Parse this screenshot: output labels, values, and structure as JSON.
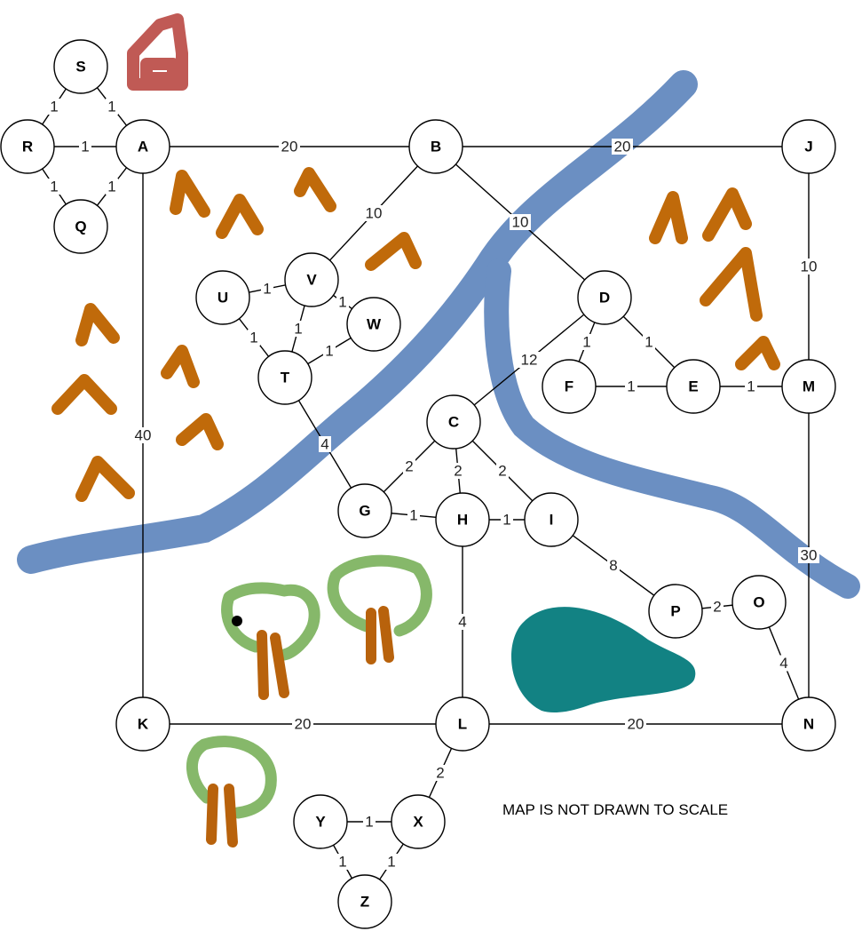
{
  "note": "MAP IS NOT DRAWN TO SCALE",
  "colors": {
    "river": "#6b8fc2",
    "mountain": "#c06a0a",
    "house": "#c05a55",
    "tree_crown": "#86b86a",
    "tree_trunk": "#b8620c",
    "lake": "#128283"
  },
  "nodes": [
    "S",
    "R",
    "A",
    "Q",
    "B",
    "J",
    "U",
    "V",
    "W",
    "T",
    "D",
    "F",
    "E",
    "M",
    "C",
    "G",
    "H",
    "I",
    "P",
    "O",
    "K",
    "L",
    "N",
    "X",
    "Y",
    "Z"
  ],
  "edges": [
    {
      "from": "S",
      "to": "R",
      "weight": "1"
    },
    {
      "from": "S",
      "to": "A",
      "weight": "1"
    },
    {
      "from": "R",
      "to": "A",
      "weight": "1"
    },
    {
      "from": "R",
      "to": "Q",
      "weight": "1"
    },
    {
      "from": "Q",
      "to": "A",
      "weight": "1"
    },
    {
      "from": "A",
      "to": "B",
      "weight": "20"
    },
    {
      "from": "B",
      "to": "J",
      "weight": "20"
    },
    {
      "from": "A",
      "to": "K",
      "weight": "40"
    },
    {
      "from": "B",
      "to": "V",
      "weight": "10"
    },
    {
      "from": "B",
      "to": "D",
      "weight": "10"
    },
    {
      "from": "J",
      "to": "M",
      "weight": "10"
    },
    {
      "from": "U",
      "to": "V",
      "weight": "1"
    },
    {
      "from": "V",
      "to": "W",
      "weight": "1"
    },
    {
      "from": "U",
      "to": "T",
      "weight": "1"
    },
    {
      "from": "V",
      "to": "T",
      "weight": "1"
    },
    {
      "from": "W",
      "to": "T",
      "weight": "1"
    },
    {
      "from": "T",
      "to": "G",
      "weight": "4"
    },
    {
      "from": "D",
      "to": "C",
      "weight": "12"
    },
    {
      "from": "D",
      "to": "F",
      "weight": "1"
    },
    {
      "from": "D",
      "to": "E",
      "weight": "1"
    },
    {
      "from": "F",
      "to": "E",
      "weight": "1"
    },
    {
      "from": "E",
      "to": "M",
      "weight": "1"
    },
    {
      "from": "M",
      "to": "N",
      "weight": "30"
    },
    {
      "from": "C",
      "to": "G",
      "weight": "2"
    },
    {
      "from": "C",
      "to": "H",
      "weight": "2"
    },
    {
      "from": "C",
      "to": "I",
      "weight": "2"
    },
    {
      "from": "G",
      "to": "H",
      "weight": "1"
    },
    {
      "from": "H",
      "to": "I",
      "weight": "1"
    },
    {
      "from": "I",
      "to": "P",
      "weight": "8"
    },
    {
      "from": "P",
      "to": "O",
      "weight": "2"
    },
    {
      "from": "O",
      "to": "N",
      "weight": "4"
    },
    {
      "from": "H",
      "to": "L",
      "weight": "4"
    },
    {
      "from": "K",
      "to": "L",
      "weight": "20"
    },
    {
      "from": "L",
      "to": "N",
      "weight": "20"
    },
    {
      "from": "L",
      "to": "X",
      "weight": "2"
    },
    {
      "from": "Y",
      "to": "X",
      "weight": "1"
    },
    {
      "from": "Y",
      "to": "Z",
      "weight": "1"
    },
    {
      "from": "X",
      "to": "Z",
      "weight": "1"
    }
  ]
}
